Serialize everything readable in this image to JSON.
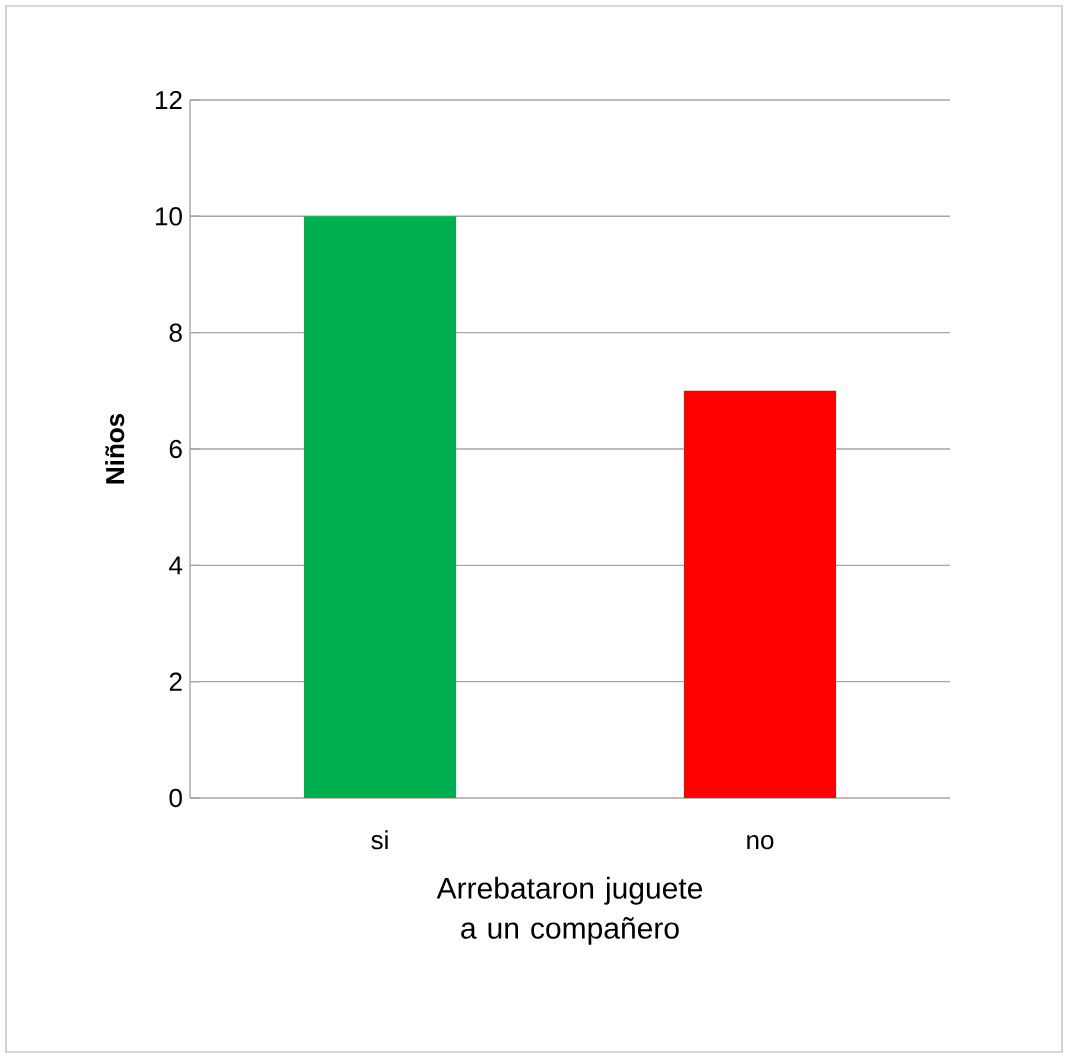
{
  "chart_data": {
    "type": "bar",
    "ylabel": "Niños",
    "xlabel": "Arrebataron juguete a un compañero",
    "categories": [
      "si",
      "no"
    ],
    "values": [
      10,
      7
    ],
    "colors": [
      "#00b050",
      "#ff0000"
    ],
    "ylim": [
      0,
      12
    ],
    "yticks": [
      0,
      2,
      4,
      6,
      8,
      10,
      12
    ],
    "grid": "y"
  }
}
